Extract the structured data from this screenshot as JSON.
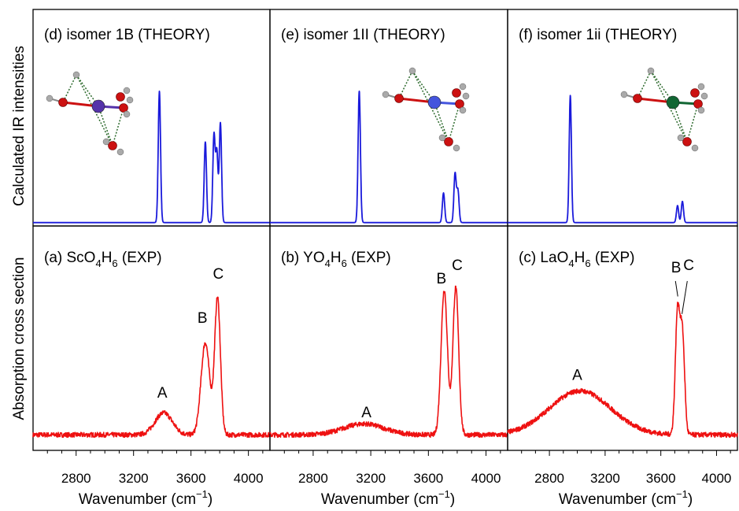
{
  "figure": {
    "ylabel_top": "Calculated IR intensities",
    "ylabel_bottom": "Absorption cross section",
    "xlabel": "Wavenumber (cm",
    "xlabel_exp": "−1",
    "xlabel_close": ")"
  },
  "colors": {
    "theory": "#1a1adb",
    "experiment": "#ee1111",
    "sc_atom": "#5533aa",
    "y_atom": "#4455dd",
    "la_atom": "#116633",
    "oxygen": "#cc1111",
    "hydrogen": "#aaaaaa"
  },
  "chart_data": [
    {
      "id": "d",
      "type": "line",
      "title": "(d) isomer 1B (THEORY)",
      "molecule_icon": "Sc-water-cluster-structure",
      "xlim": [
        2500,
        4150
      ],
      "ylim": [
        0,
        1
      ],
      "peaks": [
        {
          "x": 3380,
          "y": 0.62
        },
        {
          "x": 3700,
          "y": 0.38
        },
        {
          "x": 3760,
          "y": 0.41
        },
        {
          "x": 3780,
          "y": 0.33
        },
        {
          "x": 3805,
          "y": 0.47
        }
      ],
      "peak_width": 8
    },
    {
      "id": "e",
      "type": "line",
      "title": "(e) isomer 1II (THEORY)",
      "molecule_icon": "Y-water-cluster-structure",
      "xlim": [
        2500,
        4150
      ],
      "ylim": [
        0,
        1
      ],
      "peaks": [
        {
          "x": 3120,
          "y": 0.62
        },
        {
          "x": 3705,
          "y": 0.14
        },
        {
          "x": 3785,
          "y": 0.23
        },
        {
          "x": 3805,
          "y": 0.15
        }
      ],
      "peak_width": 8
    },
    {
      "id": "f",
      "type": "line",
      "title": "(f) isomer 1ii (THEORY)",
      "molecule_icon": "La-water-cluster-structure",
      "xlim": [
        2500,
        4150
      ],
      "ylim": [
        0,
        1
      ],
      "peaks": [
        {
          "x": 2950,
          "y": 0.6
        },
        {
          "x": 3720,
          "y": 0.08
        },
        {
          "x": 3755,
          "y": 0.1
        }
      ],
      "peak_width": 8
    },
    {
      "id": "a",
      "type": "line",
      "title_prefix": "(a) ScO",
      "title_sub1": "4",
      "title_mid": "H",
      "title_sub2": "6",
      "title_suffix": " (EXP)",
      "xlim": [
        2500,
        4150
      ],
      "ylim": [
        0,
        1
      ],
      "xticks": [
        2800,
        3200,
        3600,
        4000
      ],
      "baseline": 0.06,
      "components": [
        {
          "x": 3410,
          "y": 0.1,
          "w": 60
        },
        {
          "x": 3700,
          "y": 0.42,
          "w": 30
        },
        {
          "x": 3785,
          "y": 0.62,
          "w": 20
        }
      ],
      "peak_labels": [
        {
          "label": "A",
          "x": 3400,
          "y": 0.23
        },
        {
          "label": "B",
          "x": 3680,
          "y": 0.57
        },
        {
          "label": "C",
          "x": 3790,
          "y": 0.77
        }
      ]
    },
    {
      "id": "b",
      "type": "line",
      "title_prefix": "(b) YO",
      "title_sub1": "4",
      "title_mid": "H",
      "title_sub2": "6",
      "title_suffix": " (EXP)",
      "xlim": [
        2500,
        4150
      ],
      "ylim": [
        0,
        1
      ],
      "xticks": [
        2800,
        3200,
        3600,
        4000
      ],
      "baseline": 0.06,
      "components": [
        {
          "x": 3150,
          "y": 0.05,
          "w": 140
        },
        {
          "x": 3710,
          "y": 0.66,
          "w": 22
        },
        {
          "x": 3790,
          "y": 0.67,
          "w": 20
        }
      ],
      "peak_labels": [
        {
          "label": "A",
          "x": 3170,
          "y": 0.14
        },
        {
          "label": "B",
          "x": 3690,
          "y": 0.75
        },
        {
          "label": "C",
          "x": 3800,
          "y": 0.81
        }
      ]
    },
    {
      "id": "c",
      "type": "line",
      "title_prefix": "(c) LaO",
      "title_sub1": "4",
      "title_mid": "H",
      "title_sub2": "6",
      "title_suffix": " (EXP)",
      "xlim": [
        2500,
        4150
      ],
      "ylim": [
        0,
        1
      ],
      "xticks": [
        2800,
        3200,
        3600,
        4000
      ],
      "baseline": 0.06,
      "components": [
        {
          "x": 3020,
          "y": 0.2,
          "w": 220
        },
        {
          "x": 3720,
          "y": 0.55,
          "w": 16
        },
        {
          "x": 3755,
          "y": 0.45,
          "w": 16
        }
      ],
      "peak_labels": [
        {
          "label": "A",
          "x": 3000,
          "y": 0.31
        },
        {
          "label": "B",
          "x": 3710,
          "y": 0.8
        },
        {
          "label": "C",
          "x": 3800,
          "y": 0.81
        }
      ]
    }
  ]
}
